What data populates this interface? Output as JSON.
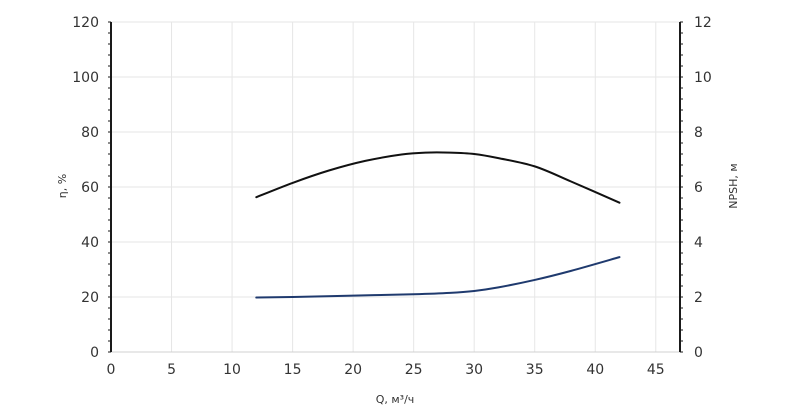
{
  "chart_data": {
    "type": "line",
    "xlabel": "Q, м³/ч",
    "ylabel_left": "η, %",
    "ylabel_right": "NPSH, м",
    "xlim": [
      0,
      47
    ],
    "ylim_left": [
      0,
      120
    ],
    "ylim_right": [
      0,
      12
    ],
    "x_ticks": [
      0,
      5,
      10,
      15,
      20,
      25,
      30,
      35,
      40,
      45
    ],
    "y_left_ticks": [
      0,
      20,
      40,
      60,
      80,
      100,
      120
    ],
    "y_right_ticks": [
      0,
      2,
      4,
      6,
      8,
      10,
      12
    ],
    "grid": true,
    "series": [
      {
        "axis": "left",
        "color": "#111111",
        "x": [
          12,
          15,
          18,
          21,
          24,
          26,
          28,
          30,
          32,
          35,
          38,
          42
        ],
        "y": [
          56.3,
          61.5,
          66,
          69.5,
          71.8,
          72.5,
          72.5,
          72,
          70.5,
          67.5,
          62,
          54.3
        ]
      },
      {
        "axis": "right",
        "color": "#1f3a6e",
        "x": [
          12,
          15,
          20,
          25,
          28,
          30,
          32,
          35,
          38,
          42
        ],
        "y": [
          1.98,
          2.0,
          2.05,
          2.1,
          2.15,
          2.22,
          2.35,
          2.62,
          2.95,
          3.45
        ]
      }
    ]
  }
}
